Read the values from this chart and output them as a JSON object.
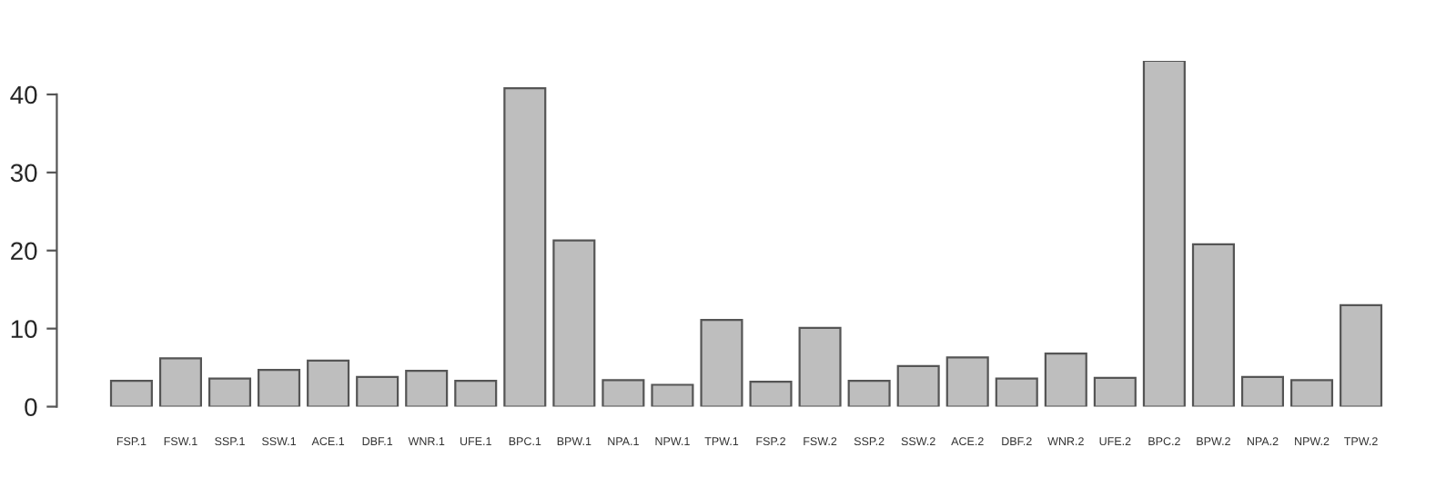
{
  "chart_data": {
    "type": "bar",
    "categories": [
      "FSP.1",
      "FSW.1",
      "SSP.1",
      "SSW.1",
      "ACE.1",
      "DBF.1",
      "WNR.1",
      "UFE.1",
      "BPC.1",
      "BPW.1",
      "NPA.1",
      "NPW.1",
      "TPW.1",
      "FSP.2",
      "FSW.2",
      "SSP.2",
      "SSW.2",
      "ACE.2",
      "DBF.2",
      "WNR.2",
      "UFE.2",
      "BPC.2",
      "BPW.2",
      "NPA.2",
      "NPW.2",
      "TPW.2"
    ],
    "values": [
      3.3,
      6.2,
      3.6,
      4.7,
      5.9,
      3.8,
      4.6,
      3.3,
      40.8,
      21.3,
      3.4,
      2.8,
      11.1,
      3.2,
      10.1,
      3.3,
      5.2,
      6.3,
      3.6,
      6.8,
      3.7,
      44.3,
      20.8,
      3.8,
      3.4,
      13.0
    ],
    "color": "#bebebe",
    "ylim": [
      0,
      44.3
    ],
    "yticks": [
      0,
      10,
      20,
      30,
      40
    ],
    "grid": false,
    "legend": false
  }
}
